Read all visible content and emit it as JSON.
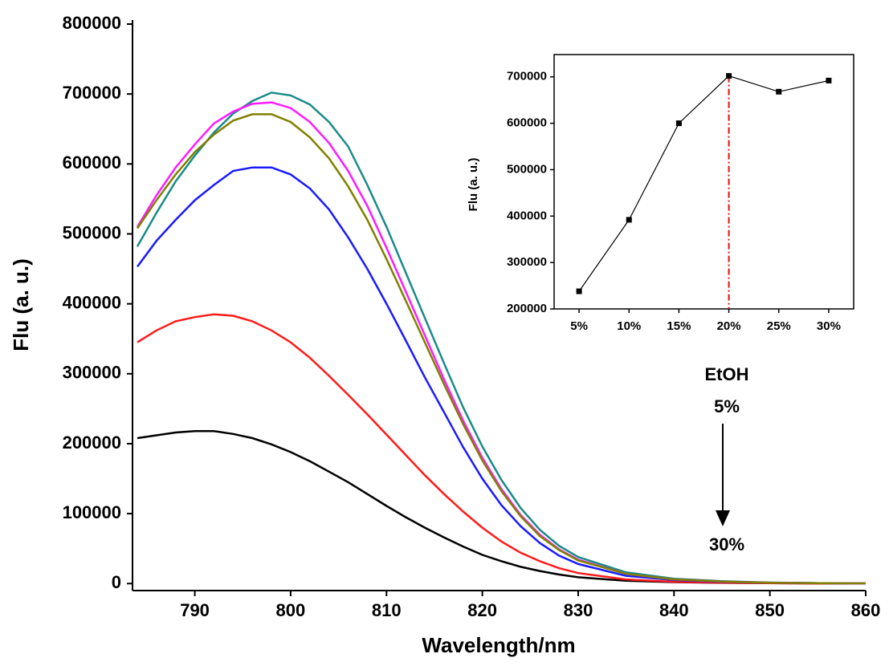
{
  "chart_data": [
    {
      "type": "line",
      "x_label": "Wavelength/nm",
      "y_label": "Flu (a. u.)",
      "x": [
        784,
        786,
        788,
        790,
        792,
        794,
        796,
        798,
        800,
        802,
        804,
        806,
        808,
        810,
        812,
        814,
        816,
        818,
        820,
        822,
        824,
        826,
        828,
        830,
        835,
        840,
        845,
        850,
        855,
        860
      ],
      "series": [
        {
          "color": "#000000",
          "values": [
            208000,
            212000,
            216000,
            218000,
            218000,
            214000,
            208000,
            199000,
            188000,
            175000,
            160000,
            145000,
            128000,
            111000,
            95000,
            80000,
            66000,
            53000,
            41000,
            32000,
            24000,
            18000,
            13000,
            9000,
            4000,
            2000,
            1000,
            500,
            200,
            100
          ]
        },
        {
          "color": "#ff1a1a",
          "values": [
            345000,
            362000,
            375000,
            381000,
            385000,
            383000,
            375000,
            362000,
            345000,
            323000,
            297000,
            270000,
            242000,
            213000,
            184000,
            155000,
            128000,
            103000,
            80000,
            60000,
            44000,
            32000,
            22000,
            15000,
            6000,
            2500,
            1200,
            500,
            200,
            100
          ]
        },
        {
          "color": "#1a1aff",
          "values": [
            453000,
            490000,
            520000,
            548000,
            570000,
            590000,
            595000,
            595000,
            585000,
            565000,
            535000,
            495000,
            450000,
            400000,
            348000,
            295000,
            245000,
            195000,
            150000,
            112000,
            82000,
            58000,
            40000,
            28000,
            11000,
            5000,
            2500,
            1200,
            500,
            200
          ]
        },
        {
          "color": "#1a8a8a",
          "values": [
            482000,
            530000,
            575000,
            612000,
            645000,
            672000,
            690000,
            702000,
            698000,
            685000,
            660000,
            625000,
            570000,
            510000,
            445000,
            380000,
            315000,
            252000,
            196000,
            148000,
            108000,
            77000,
            54000,
            38000,
            16000,
            7000,
            3500,
            1500,
            700,
            300
          ]
        },
        {
          "color": "#ff1aff",
          "values": [
            510000,
            555000,
            595000,
            628000,
            658000,
            675000,
            686000,
            688000,
            680000,
            660000,
            630000,
            590000,
            540000,
            480000,
            418000,
            355000,
            292000,
            233000,
            180000,
            135000,
            98000,
            70000,
            49000,
            34000,
            14000,
            6000,
            3000,
            1300,
            600,
            300
          ]
        },
        {
          "color": "#808000",
          "values": [
            508000,
            548000,
            585000,
            617000,
            642000,
            662000,
            671000,
            671000,
            660000,
            638000,
            608000,
            568000,
            520000,
            464000,
            405000,
            345000,
            285000,
            228000,
            176000,
            132000,
            96000,
            68000,
            48000,
            33000,
            14000,
            6000,
            3000,
            1300,
            600,
            300
          ]
        }
      ],
      "xlim": [
        783.5,
        860
      ],
      "xticks": [
        790,
        800,
        810,
        820,
        830,
        840,
        850,
        860
      ],
      "ylim": [
        -10000,
        800000
      ],
      "yticks": [
        0,
        100000,
        200000,
        300000,
        400000,
        500000,
        600000,
        700000,
        800000
      ],
      "annotations": [
        "EtOH",
        "5%",
        "30%"
      ]
    },
    {
      "type": "line",
      "y_label": "Flu (a. u.)",
      "categories": [
        "5%",
        "10%",
        "15%",
        "20%",
        "25%",
        "30%"
      ],
      "values": [
        238000,
        392000,
        600000,
        702000,
        668000,
        692000
      ],
      "color": "#000000",
      "ylim": [
        200000,
        748000
      ],
      "yticks": [
        200000,
        300000,
        400000,
        500000,
        600000,
        700000
      ],
      "reference_line": {
        "category": "20%",
        "color": "#e01010"
      }
    }
  ]
}
